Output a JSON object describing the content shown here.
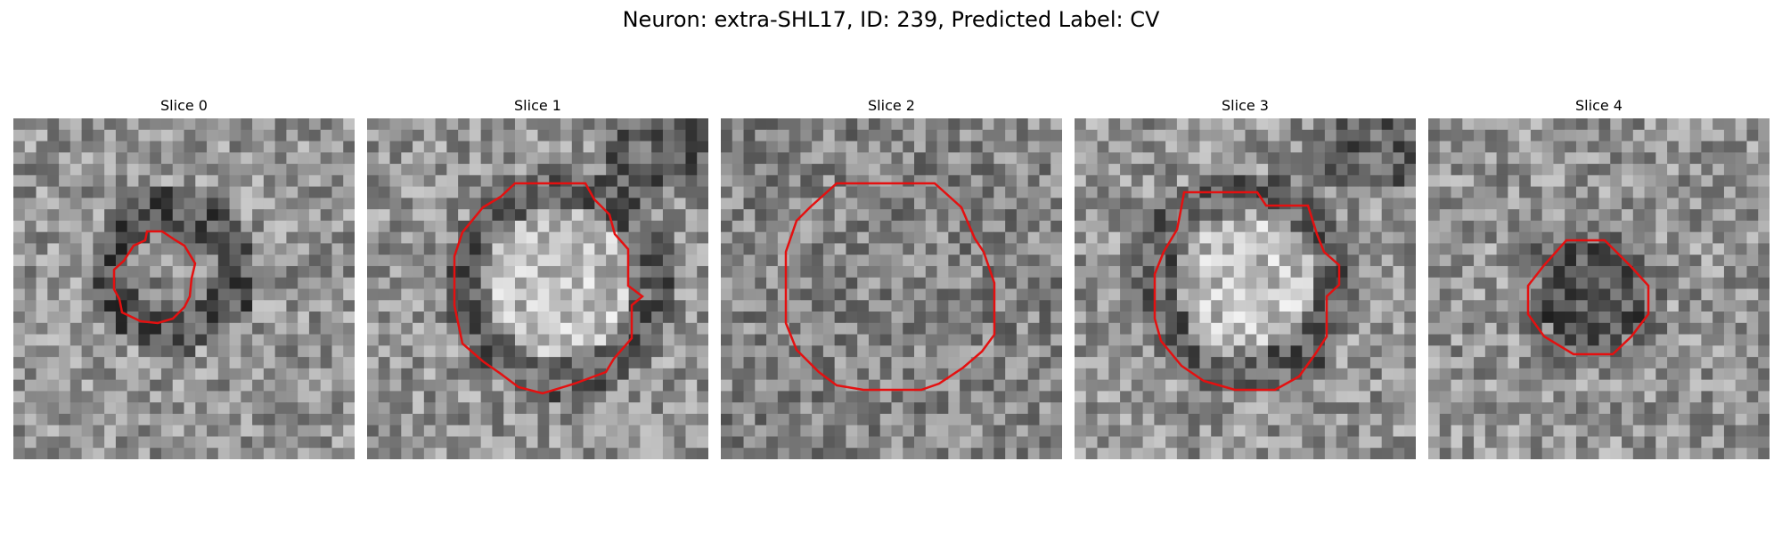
{
  "figure": {
    "title": "Neuron: extra-SHL17, ID: 239, Predicted Label: CV"
  },
  "contour_color": "#e41010",
  "image_style": "grayscale-noise",
  "grid_size": 30,
  "panels": [
    {
      "title": "Slice 0",
      "seed": 11,
      "contour": "roi-slice-0"
    },
    {
      "title": "Slice 1",
      "seed": 23,
      "contour": "roi-slice-1"
    },
    {
      "title": "Slice 2",
      "seed": 37,
      "contour": "roi-slice-2"
    },
    {
      "title": "Slice 3",
      "seed": 41,
      "contour": "roi-slice-3"
    },
    {
      "title": "Slice 4",
      "seed": 59,
      "contour": "roi-slice-4"
    }
  ]
}
